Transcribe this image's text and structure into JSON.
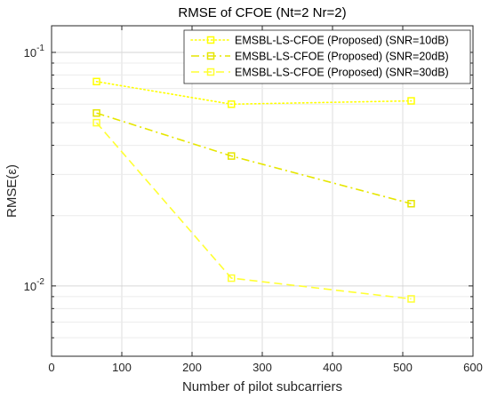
{
  "chart_data": {
    "type": "line",
    "title": "RMSE of CFOE (Nt=2 Nr=2)",
    "xlabel": "Number of pilot subcarriers",
    "ylabel": "RMSE(ε)",
    "xlim": [
      0,
      600
    ],
    "ylim": [
      0.005,
      0.13
    ],
    "yscale": "log",
    "x_ticks": [
      0,
      100,
      200,
      300,
      400,
      500,
      600
    ],
    "y_major_ticks": [
      {
        "value": 0.1,
        "base": "10",
        "exp": "-1"
      },
      {
        "value": 0.01,
        "base": "10",
        "exp": "-2"
      }
    ],
    "grid": true,
    "legend_position": "top-right",
    "x": [
      64,
      256,
      512
    ],
    "series": [
      {
        "name": "EMSBL-LS-CFOE (Proposed) (SNR=10dB)",
        "values": [
          0.075,
          0.06,
          0.062
        ],
        "color": "#ffff00",
        "dash": "dotted",
        "marker": "square"
      },
      {
        "name": "EMSBL-LS-CFOE (Proposed) (SNR=20dB)",
        "values": [
          0.055,
          0.036,
          0.0225
        ],
        "color": "#e6e600",
        "dash": "dashdot",
        "marker": "square"
      },
      {
        "name": "EMSBL-LS-CFOE (Proposed) (SNR=30dB)",
        "values": [
          0.05,
          0.0108,
          0.0088
        ],
        "color": "#ffff33",
        "dash": "dashed",
        "marker": "square"
      }
    ]
  }
}
